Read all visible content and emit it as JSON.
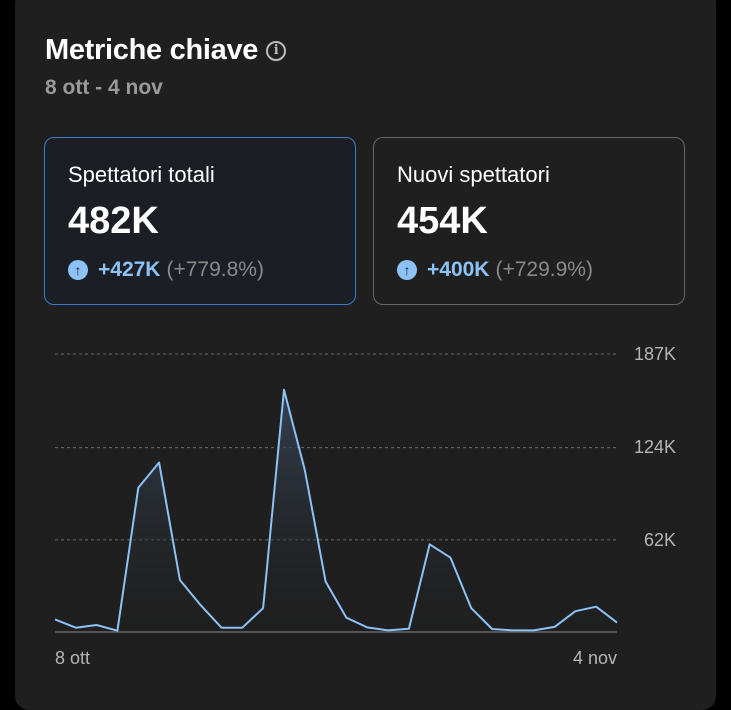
{
  "header": {
    "title": "Metriche chiave",
    "info_icon": "info-icon",
    "date_range": "8 ott - 4 nov"
  },
  "cards": [
    {
      "label": "Spettatori totali",
      "value": "482K",
      "delta": "+427K",
      "delta_pct": "(+779.8%)",
      "selected": true
    },
    {
      "label": "Nuovi spettatori",
      "value": "454K",
      "delta": "+400K",
      "delta_pct": "(+729.9%)",
      "selected": false
    }
  ],
  "colors": {
    "accent": "#8cc2f5",
    "selected_border": "#3b7bd6",
    "panel": "#1f1f1f"
  },
  "chart_data": {
    "type": "area",
    "x_tick_labels": [
      "8 ott",
      "4 nov"
    ],
    "y_tick_labels": [
      "187K",
      "124K",
      "62K"
    ],
    "y_ticks": [
      187,
      124,
      62
    ],
    "ylim": [
      0,
      187
    ],
    "grid": true,
    "values": [
      8.5,
      2.9,
      4.7,
      0.9,
      97,
      114,
      35,
      18,
      2.9,
      2.9,
      16,
      163,
      109,
      34,
      9.6,
      3.1,
      1.1,
      2.2,
      59,
      50,
      16,
      2,
      1.1,
      1.1,
      3.4,
      14,
      17,
      6.3
    ]
  }
}
